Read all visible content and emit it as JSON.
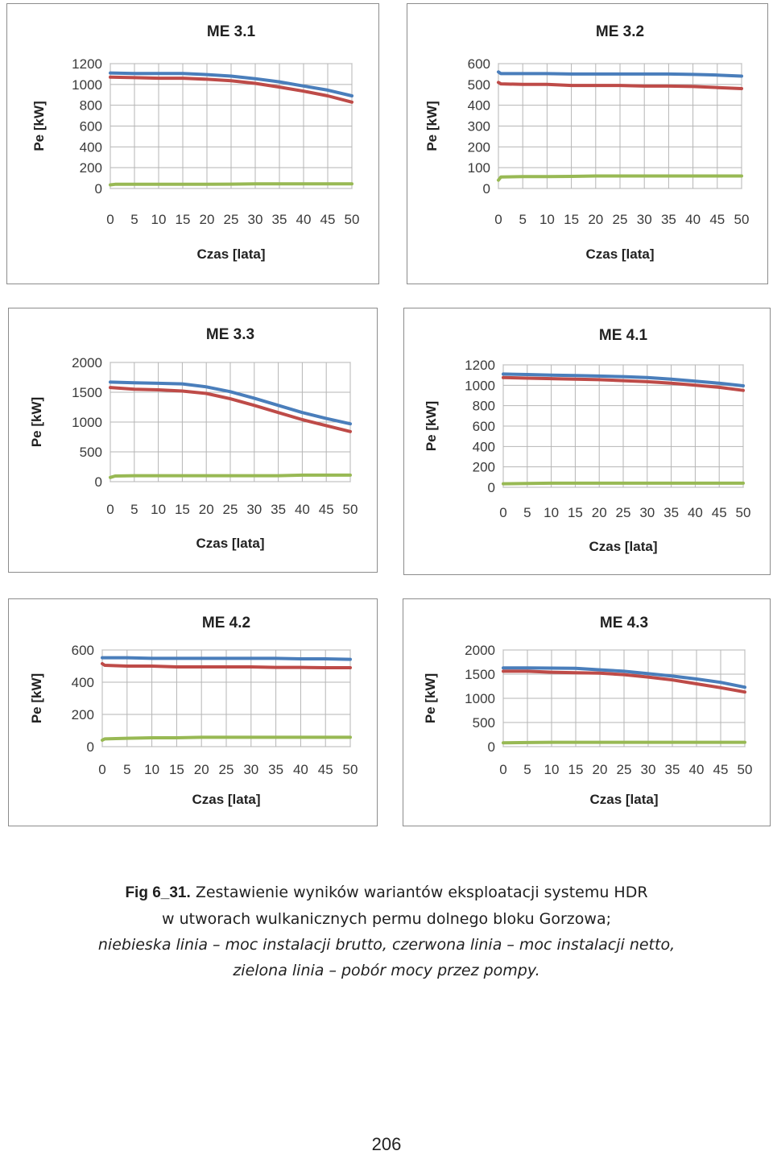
{
  "chart_data": [
    {
      "type": "line",
      "title": "ME 3.1",
      "xlabel": "Czas [lata]",
      "ylabel": "Pe [kW]",
      "xlim": [
        0,
        50
      ],
      "ylim": [
        0,
        1200
      ],
      "x_ticks": [
        "0",
        "5",
        "10",
        "15",
        "20",
        "25",
        "30",
        "35",
        "40",
        "45",
        "50"
      ],
      "y_ticks": [
        "0",
        "200",
        "400",
        "600",
        "800",
        "1000",
        "1200"
      ],
      "grid": true,
      "series": [
        {
          "color": "#4a7ebb",
          "x": [
            0,
            5,
            10,
            15,
            20,
            25,
            30,
            35,
            40,
            45,
            50
          ],
          "values": [
            1110,
            1105,
            1105,
            1105,
            1095,
            1080,
            1055,
            1025,
            985,
            945,
            890
          ]
        },
        {
          "color": "#be4b48",
          "x": [
            0,
            5,
            10,
            15,
            20,
            25,
            30,
            35,
            40,
            45,
            50
          ],
          "values": [
            1070,
            1065,
            1060,
            1060,
            1050,
            1035,
            1010,
            975,
            935,
            890,
            830
          ]
        },
        {
          "color": "#98b954",
          "x": [
            0,
            1,
            5,
            10,
            15,
            20,
            25,
            30,
            35,
            40,
            45,
            50
          ],
          "values": [
            35,
            40,
            40,
            40,
            40,
            40,
            42,
            45,
            45,
            45,
            45,
            45
          ]
        }
      ]
    },
    {
      "type": "line",
      "title": "ME 3.2",
      "xlabel": "Czas [lata]",
      "ylabel": "Pe [kW]",
      "xlim": [
        0,
        50
      ],
      "ylim": [
        0,
        600
      ],
      "x_ticks": [
        "0",
        "5",
        "10",
        "15",
        "20",
        "25",
        "30",
        "35",
        "40",
        "45",
        "50"
      ],
      "y_ticks": [
        "0",
        "100",
        "200",
        "300",
        "400",
        "500",
        "600"
      ],
      "grid": true,
      "series": [
        {
          "color": "#4a7ebb",
          "x": [
            0,
            0.5,
            5,
            10,
            15,
            20,
            25,
            30,
            35,
            40,
            45,
            50
          ],
          "values": [
            560,
            552,
            552,
            552,
            550,
            550,
            550,
            550,
            550,
            548,
            545,
            540
          ]
        },
        {
          "color": "#be4b48",
          "x": [
            0,
            0.5,
            5,
            10,
            15,
            20,
            25,
            30,
            35,
            40,
            45,
            50
          ],
          "values": [
            510,
            503,
            500,
            500,
            495,
            495,
            495,
            492,
            492,
            490,
            485,
            480
          ]
        },
        {
          "color": "#98b954",
          "x": [
            0,
            0.5,
            5,
            10,
            15,
            20,
            25,
            30,
            35,
            40,
            45,
            50
          ],
          "values": [
            40,
            55,
            57,
            57,
            58,
            60,
            60,
            60,
            60,
            60,
            60,
            60
          ]
        }
      ]
    },
    {
      "type": "line",
      "title": "ME 3.3",
      "xlabel": "Czas [lata]",
      "ylabel": "Pe [kW]",
      "xlim": [
        0,
        50
      ],
      "ylim": [
        0,
        2000
      ],
      "x_ticks": [
        "0",
        "5",
        "10",
        "15",
        "20",
        "25",
        "30",
        "35",
        "40",
        "45",
        "50"
      ],
      "y_ticks": [
        "0",
        "500",
        "1000",
        "1500",
        "2000"
      ],
      "grid": true,
      "series": [
        {
          "color": "#4a7ebb",
          "x": [
            0,
            5,
            10,
            15,
            20,
            25,
            30,
            35,
            40,
            45,
            50
          ],
          "values": [
            1670,
            1660,
            1650,
            1640,
            1590,
            1510,
            1400,
            1280,
            1160,
            1060,
            970
          ]
        },
        {
          "color": "#be4b48",
          "x": [
            0,
            5,
            10,
            15,
            20,
            25,
            30,
            35,
            40,
            45,
            50
          ],
          "values": [
            1580,
            1550,
            1540,
            1520,
            1480,
            1390,
            1280,
            1160,
            1040,
            940,
            840
          ]
        },
        {
          "color": "#98b954",
          "x": [
            0,
            1,
            5,
            10,
            15,
            20,
            25,
            30,
            35,
            40,
            45,
            50
          ],
          "values": [
            70,
            95,
            100,
            100,
            100,
            100,
            100,
            100,
            100,
            110,
            110,
            110
          ]
        }
      ]
    },
    {
      "type": "line",
      "title": "ME 4.1",
      "xlabel": "Czas [lata]",
      "ylabel": "Pe [kW]",
      "xlim": [
        0,
        50
      ],
      "ylim": [
        0,
        1200
      ],
      "x_ticks": [
        "0",
        "5",
        "10",
        "15",
        "20",
        "25",
        "30",
        "35",
        "40",
        "45",
        "50"
      ],
      "y_ticks": [
        "0",
        "200",
        "400",
        "600",
        "800",
        "1000",
        "1200"
      ],
      "grid": true,
      "series": [
        {
          "color": "#4a7ebb",
          "x": [
            0,
            5,
            10,
            15,
            20,
            25,
            30,
            35,
            40,
            45,
            50
          ],
          "values": [
            1110,
            1105,
            1100,
            1095,
            1090,
            1085,
            1075,
            1060,
            1040,
            1020,
            995
          ]
        },
        {
          "color": "#be4b48",
          "x": [
            0,
            5,
            10,
            15,
            20,
            25,
            30,
            35,
            40,
            45,
            50
          ],
          "values": [
            1075,
            1070,
            1065,
            1060,
            1055,
            1045,
            1035,
            1020,
            1000,
            980,
            950
          ]
        },
        {
          "color": "#98b954",
          "x": [
            0,
            5,
            10,
            15,
            20,
            25,
            30,
            35,
            40,
            45,
            50
          ],
          "values": [
            35,
            38,
            40,
            40,
            40,
            40,
            40,
            40,
            40,
            40,
            40
          ]
        }
      ]
    },
    {
      "type": "line",
      "title": "ME 4.2",
      "xlabel": "Czas [lata]",
      "ylabel": "Pe [kW]",
      "xlim": [
        0,
        50
      ],
      "ylim": [
        0,
        600
      ],
      "x_ticks": [
        "0",
        "5",
        "10",
        "15",
        "20",
        "25",
        "30",
        "35",
        "40",
        "45",
        "50"
      ],
      "y_ticks": [
        "0",
        "200",
        "400",
        "600"
      ],
      "grid": true,
      "series": [
        {
          "color": "#4a7ebb",
          "x": [
            0,
            5,
            10,
            15,
            20,
            25,
            30,
            35,
            40,
            45,
            50
          ],
          "values": [
            552,
            552,
            548,
            548,
            548,
            548,
            548,
            548,
            545,
            545,
            542
          ]
        },
        {
          "color": "#be4b48",
          "x": [
            0,
            0.5,
            5,
            10,
            15,
            20,
            25,
            30,
            35,
            40,
            45,
            50
          ],
          "values": [
            515,
            505,
            500,
            500,
            495,
            495,
            495,
            495,
            492,
            492,
            490,
            490
          ]
        },
        {
          "color": "#98b954",
          "x": [
            0,
            0.5,
            5,
            10,
            15,
            20,
            25,
            30,
            35,
            40,
            45,
            50
          ],
          "values": [
            40,
            48,
            52,
            55,
            55,
            58,
            58,
            58,
            58,
            58,
            58,
            58
          ]
        }
      ]
    },
    {
      "type": "line",
      "title": "ME 4.3",
      "xlabel": "Czas [lata]",
      "ylabel": "Pe [kW]",
      "xlim": [
        0,
        50
      ],
      "ylim": [
        0,
        2000
      ],
      "x_ticks": [
        "0",
        "5",
        "10",
        "15",
        "20",
        "25",
        "30",
        "35",
        "40",
        "45",
        "50"
      ],
      "y_ticks": [
        "0",
        "500",
        "1000",
        "1500",
        "2000"
      ],
      "grid": true,
      "series": [
        {
          "color": "#4a7ebb",
          "x": [
            0,
            5,
            10,
            15,
            20,
            25,
            30,
            35,
            40,
            45,
            50
          ],
          "values": [
            1630,
            1630,
            1625,
            1620,
            1590,
            1560,
            1510,
            1460,
            1400,
            1330,
            1230
          ]
        },
        {
          "color": "#be4b48",
          "x": [
            0,
            5,
            10,
            15,
            20,
            25,
            30,
            35,
            40,
            45,
            50
          ],
          "values": [
            1560,
            1560,
            1540,
            1530,
            1520,
            1490,
            1440,
            1380,
            1300,
            1220,
            1130
          ]
        },
        {
          "color": "#98b954",
          "x": [
            0,
            5,
            10,
            15,
            20,
            25,
            30,
            35,
            40,
            45,
            50
          ],
          "values": [
            80,
            85,
            90,
            90,
            90,
            90,
            90,
            90,
            90,
            90,
            90
          ]
        }
      ]
    }
  ],
  "caption": {
    "lead": "Fig 6_31.",
    "line1": "Zestawienie wyników wariantów eksploatacji systemu HDR",
    "line2": "w utworach wulkanicznych permu dolnego bloku Gorzowa;",
    "line3": "niebieska linia – moc instalacji brutto, czerwona linia – moc instalacji netto,",
    "line4": "zielona linia – pobór mocy przez pompy."
  },
  "page_number": "206"
}
